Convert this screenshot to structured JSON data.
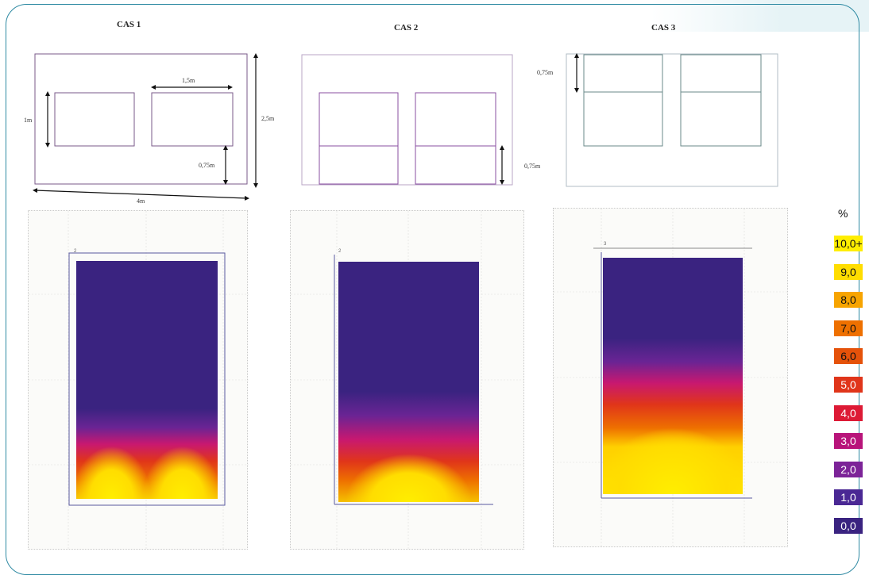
{
  "cases": [
    {
      "id": "cas1",
      "title": "CAS 1"
    },
    {
      "id": "cas2",
      "title": "CAS 2"
    },
    {
      "id": "cas3",
      "title": "CAS 3"
    }
  ],
  "dimensions": {
    "window_width": "1,5m",
    "window_height": "1m",
    "wall_height": "2,5m",
    "sill_height": "0,75m",
    "wall_width": "4m",
    "cas2_sill": "0,75m",
    "cas3_top": "0,75m"
  },
  "legend": {
    "title": "%",
    "items": [
      {
        "label": "10,0+",
        "color": "#ffee00",
        "text_color": "#111111"
      },
      {
        "label": "9,0",
        "color": "#ffdd00",
        "text_color": "#111111"
      },
      {
        "label": "8,0",
        "color": "#f7a400",
        "text_color": "#111111"
      },
      {
        "label": "7,0",
        "color": "#ee7000",
        "text_color": "#111111"
      },
      {
        "label": "6,0",
        "color": "#e5520a",
        "text_color": "#111111"
      },
      {
        "label": "5,0",
        "color": "#e0351a",
        "text_color": "#ffffff"
      },
      {
        "label": "4,0",
        "color": "#dd1a35",
        "text_color": "#ffffff"
      },
      {
        "label": "3,0",
        "color": "#b8147a",
        "text_color": "#ffffff"
      },
      {
        "label": "2,0",
        "color": "#7c2398",
        "text_color": "#ffffff"
      },
      {
        "label": "1,0",
        "color": "#4a2894",
        "text_color": "#ffffff"
      },
      {
        "label": "0,0",
        "color": "#3a2380",
        "text_color": "#ffffff"
      }
    ]
  },
  "colors": {
    "frame": "#2f8aa3",
    "wall_outline": "#7a5a8a",
    "heat_base": "#3a2380"
  }
}
